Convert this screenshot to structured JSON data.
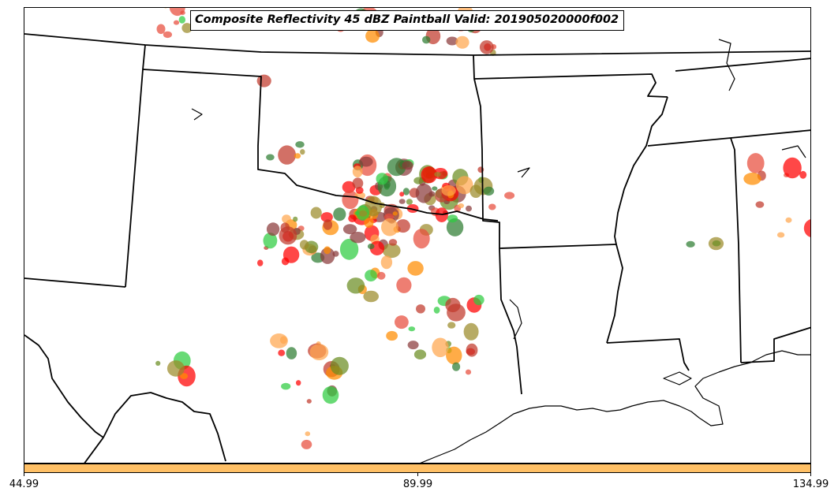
{
  "title": "Composite Reflectivity 45 dBZ Paintball Valid: 201905020000f002",
  "colorbar": {
    "color": "#ffc066",
    "ticks": [
      "44.99",
      "89.99",
      "134.99"
    ]
  },
  "member_colors": [
    "#ff0000",
    "#e74c3c",
    "#2ecc40",
    "#9b8a2a",
    "#8b3a3a",
    "#ff8c00",
    "#2e7d32",
    "#ffa64d",
    "#6b8e23",
    "#c0392b"
  ],
  "features": [
    "state-borders",
    "coastline",
    "rivers"
  ]
}
